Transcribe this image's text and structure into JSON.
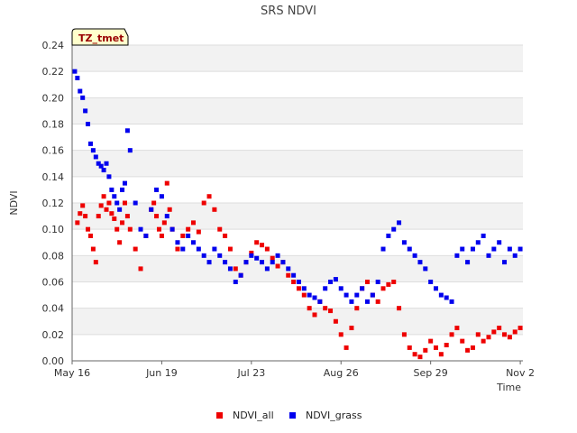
{
  "chart_data": {
    "type": "scatter",
    "title": "SRS NDVI",
    "xlabel": "Time",
    "ylabel": "NDVI",
    "ylim": [
      0,
      0.24
    ],
    "xlim_days": [
      0,
      171
    ],
    "yticks": [
      0.0,
      0.02,
      0.04,
      0.06,
      0.08,
      0.1,
      0.12,
      0.14,
      0.16,
      0.18,
      0.2,
      0.22,
      0.24
    ],
    "ytick_labels": [
      "0.00",
      "0.02",
      "0.04",
      "0.06",
      "0.08",
      "0.10",
      "0.12",
      "0.14",
      "0.16",
      "0.18",
      "0.20",
      "0.22",
      "0.24"
    ],
    "xtick_days": [
      0,
      34,
      68,
      102,
      136,
      170
    ],
    "xtick_labels": [
      "May 16",
      "Jun 19",
      "Jul 23",
      "Aug 26",
      "Sep 29",
      "Nov 2"
    ],
    "badge": "TZ_tmet",
    "legend_position": "bottom-center",
    "series": [
      {
        "name": "NDVI_all",
        "color": "#ee0000",
        "x": [
          2,
          3,
          4,
          5,
          6,
          7,
          8,
          9,
          10,
          11,
          12,
          13,
          14,
          15,
          16,
          17,
          18,
          19,
          20,
          21,
          22,
          24,
          26,
          28,
          30,
          31,
          32,
          33,
          34,
          35,
          36,
          37,
          38,
          40,
          42,
          44,
          46,
          48,
          50,
          52,
          54,
          56,
          58,
          60,
          62,
          64,
          66,
          68,
          70,
          72,
          74,
          76,
          78,
          80,
          82,
          84,
          86,
          88,
          90,
          92,
          94,
          96,
          98,
          100,
          102,
          104,
          106,
          108,
          110,
          112,
          114,
          116,
          118,
          120,
          122,
          124,
          126,
          128,
          130,
          132,
          134,
          136,
          138,
          140,
          142,
          144,
          146,
          148,
          150,
          152,
          154,
          156,
          158,
          160,
          162,
          164,
          166,
          168,
          170
        ],
        "y": [
          0.105,
          0.112,
          0.118,
          0.11,
          0.1,
          0.095,
          0.085,
          0.075,
          0.11,
          0.118,
          0.125,
          0.115,
          0.12,
          0.112,
          0.108,
          0.1,
          0.09,
          0.105,
          0.12,
          0.11,
          0.1,
          0.085,
          0.07,
          0.095,
          0.115,
          0.12,
          0.11,
          0.1,
          0.095,
          0.105,
          0.135,
          0.115,
          0.1,
          0.085,
          0.095,
          0.1,
          0.105,
          0.098,
          0.12,
          0.125,
          0.115,
          0.1,
          0.095,
          0.085,
          0.07,
          0.065,
          0.075,
          0.082,
          0.09,
          0.088,
          0.085,
          0.078,
          0.072,
          0.075,
          0.065,
          0.06,
          0.055,
          0.05,
          0.04,
          0.035,
          0.045,
          0.04,
          0.038,
          0.03,
          0.02,
          0.01,
          0.025,
          0.04,
          0.055,
          0.06,
          0.05,
          0.045,
          0.055,
          0.058,
          0.06,
          0.04,
          0.02,
          0.01,
          0.005,
          0.003,
          0.008,
          0.015,
          0.01,
          0.005,
          0.012,
          0.02,
          0.025,
          0.015,
          0.008,
          0.01,
          0.02,
          0.015,
          0.018,
          0.022,
          0.025,
          0.02,
          0.018,
          0.022,
          0.025
        ]
      },
      {
        "name": "NDVI_grass",
        "color": "#0000ee",
        "x": [
          1,
          2,
          3,
          4,
          5,
          6,
          7,
          8,
          9,
          10,
          11,
          12,
          13,
          14,
          15,
          16,
          17,
          18,
          19,
          20,
          21,
          22,
          24,
          26,
          28,
          30,
          32,
          34,
          36,
          38,
          40,
          42,
          44,
          46,
          48,
          50,
          52,
          54,
          56,
          58,
          60,
          62,
          64,
          66,
          68,
          70,
          72,
          74,
          76,
          78,
          80,
          82,
          84,
          86,
          88,
          90,
          92,
          94,
          96,
          98,
          100,
          102,
          104,
          106,
          108,
          110,
          112,
          114,
          116,
          118,
          120,
          122,
          124,
          126,
          128,
          130,
          132,
          134,
          136,
          138,
          140,
          142,
          144,
          146,
          148,
          150,
          152,
          154,
          156,
          158,
          160,
          162,
          164,
          166,
          168,
          170
        ],
        "y": [
          0.22,
          0.215,
          0.205,
          0.2,
          0.19,
          0.18,
          0.165,
          0.16,
          0.155,
          0.15,
          0.148,
          0.145,
          0.15,
          0.14,
          0.13,
          0.125,
          0.12,
          0.115,
          0.13,
          0.135,
          0.175,
          0.16,
          0.12,
          0.1,
          0.095,
          0.115,
          0.13,
          0.125,
          0.11,
          0.1,
          0.09,
          0.085,
          0.095,
          0.09,
          0.085,
          0.08,
          0.075,
          0.085,
          0.08,
          0.075,
          0.07,
          0.06,
          0.065,
          0.075,
          0.08,
          0.078,
          0.075,
          0.07,
          0.075,
          0.08,
          0.075,
          0.07,
          0.065,
          0.06,
          0.055,
          0.05,
          0.048,
          0.045,
          0.055,
          0.06,
          0.062,
          0.055,
          0.05,
          0.045,
          0.05,
          0.055,
          0.045,
          0.05,
          0.06,
          0.085,
          0.095,
          0.1,
          0.105,
          0.09,
          0.085,
          0.08,
          0.075,
          0.07,
          0.06,
          0.055,
          0.05,
          0.048,
          0.045,
          0.08,
          0.085,
          0.075,
          0.085,
          0.09,
          0.095,
          0.08,
          0.085,
          0.09,
          0.075,
          0.085,
          0.08,
          0.085
        ]
      }
    ]
  }
}
